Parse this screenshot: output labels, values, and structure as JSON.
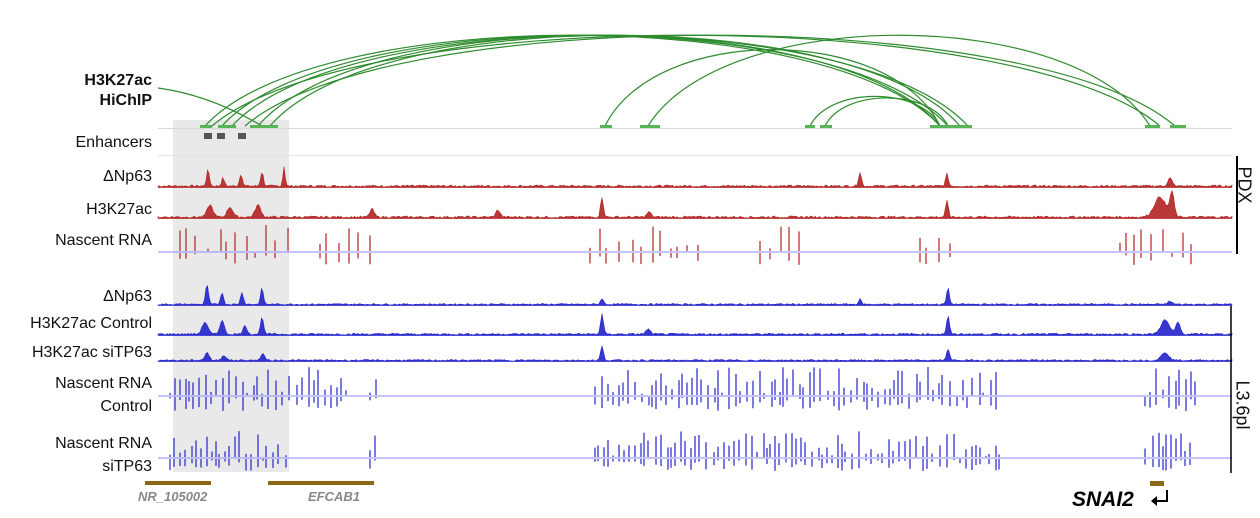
{
  "labels": {
    "hichip_line1": "H3K27ac",
    "hichip_line2": "HiChIP",
    "enhancers": "Enhancers",
    "pdx_np63": "ΔNp63",
    "pdx_h3k27ac": "H3K27ac",
    "pdx_nascent": "Nascent RNA",
    "l36_np63": "ΔNp63",
    "l36_h3k27ac_control": "H3K27ac Control",
    "l36_h3k27ac_sitp63": "H3K27ac siTP63",
    "l36_nascent_control_1": "Nascent RNA",
    "l36_nascent_control_2": "Control",
    "l36_nascent_sitp63_1": "Nascent RNA",
    "l36_nascent_sitp63_2": "siTP63"
  },
  "groups": {
    "pdx": "PDX",
    "l36pl": "L3.6pl"
  },
  "genes": [
    {
      "name": "NR_105002"
    },
    {
      "name": "EFCAB1"
    },
    {
      "name": "SNAI2"
    }
  ],
  "colors": {
    "loop": "#2e8b2e",
    "pdx": "#b22222",
    "l36": "#2222cc",
    "enhancer": "#555555",
    "gene": "#8b6914",
    "highlight": "#e9e9e9"
  }
}
